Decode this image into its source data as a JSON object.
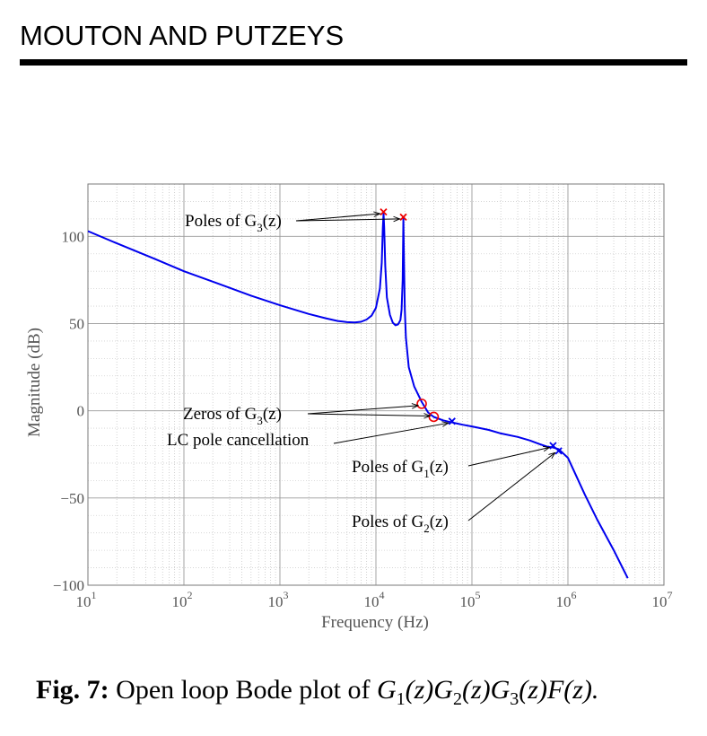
{
  "header": {
    "title": "MOUTON AND PUTZEYS"
  },
  "caption": {
    "label": "Fig. 7:",
    "text": " Open loop Bode plot of ",
    "expression": "G₁(z)G₂(z)G₃(z)F(z).",
    "expression_parts": [
      {
        "base": "G",
        "sub": "1",
        "tail": "(z)"
      },
      {
        "base": "G",
        "sub": "2",
        "tail": "(z)"
      },
      {
        "base": "G",
        "sub": "3",
        "tail": "(z)"
      },
      {
        "base": "F",
        "sub": "",
        "tail": "(z)."
      }
    ]
  },
  "chart_data": {
    "type": "line",
    "title": "",
    "xlabel": "Frequency (Hz)",
    "ylabel": "Magnitude (dB)",
    "xscale": "log",
    "xlim": [
      10,
      10000000
    ],
    "ylim": [
      -100,
      130
    ],
    "grid": true,
    "x_ticks": [
      {
        "base": "10",
        "exp": "1",
        "value": 10
      },
      {
        "base": "10",
        "exp": "2",
        "value": 100
      },
      {
        "base": "10",
        "exp": "3",
        "value": 1000
      },
      {
        "base": "10",
        "exp": "4",
        "value": 10000
      },
      {
        "base": "10",
        "exp": "5",
        "value": 100000
      },
      {
        "base": "10",
        "exp": "6",
        "value": 1000000
      },
      {
        "base": "10",
        "exp": "7",
        "value": 10000000
      }
    ],
    "y_ticks": [
      {
        "label": "100",
        "value": 100
      },
      {
        "label": "50",
        "value": 50
      },
      {
        "label": "0",
        "value": 0
      },
      {
        "label": "−50",
        "value": -50
      },
      {
        "label": "−100",
        "value": -100
      }
    ],
    "series_color": "#0000ee",
    "marker_color": "#ee0000",
    "series": [
      {
        "x": [
          10,
          20,
          50,
          100,
          200,
          500,
          1000,
          2000,
          3000,
          4000,
          5000,
          6000,
          7000,
          8000,
          9000,
          10000,
          11000,
          11500,
          11800,
          12000,
          12200,
          12500,
          13000,
          14000,
          15000,
          16000,
          17000,
          18000,
          18500,
          19000,
          19300,
          19600,
          20000,
          20500,
          22000,
          25000,
          30000,
          35000,
          40000,
          50000,
          60000,
          80000,
          100000,
          150000,
          200000,
          300000,
          400000,
          500000,
          600000,
          700000,
          800000,
          1000000,
          1500000,
          2000000,
          3000000,
          4200000
        ],
        "y": [
          103,
          96,
          87,
          80,
          74,
          66,
          60.5,
          55.5,
          53,
          51.5,
          50.8,
          50.6,
          51,
          52.3,
          54.5,
          59,
          70,
          85,
          105,
          113,
          105,
          83,
          65,
          55,
          50.5,
          49,
          49.5,
          52,
          58,
          75,
          110,
          85,
          58,
          42,
          25,
          14,
          5,
          -1,
          -3.5,
          -5.5,
          -6.5,
          -8,
          -9,
          -11,
          -13,
          -15,
          -17,
          -19,
          -20.5,
          -21,
          -22,
          -27,
          -48,
          -62,
          -80,
          -96
        ]
      }
    ],
    "markers": [
      {
        "kind": "x",
        "x": 12000,
        "y": 114,
        "color": "#ee0000"
      },
      {
        "kind": "x",
        "x": 19300,
        "y": 111,
        "color": "#ee0000"
      },
      {
        "kind": "o",
        "x": 30000,
        "y": 4,
        "color": "#ee0000"
      },
      {
        "kind": "o",
        "x": 40000,
        "y": -3.5,
        "color": "#ee0000"
      },
      {
        "kind": "x",
        "x": 62000,
        "y": -6,
        "color": "#0000ee"
      },
      {
        "kind": "x",
        "x": 700000,
        "y": -20,
        "color": "#0000ee"
      },
      {
        "kind": "x",
        "x": 800000,
        "y": -23,
        "color": "#0000ee"
      }
    ],
    "annotations": [
      {
        "main": "Poles of G",
        "sub": "3",
        "tail": "(z)",
        "targets": [
          [
            12000,
            114
          ],
          [
            19300,
            111
          ]
        ]
      },
      {
        "main": "Zeros of G",
        "sub": "3",
        "tail": "(z)",
        "targets": [
          [
            30000,
            4
          ],
          [
            40000,
            -3.5
          ]
        ]
      },
      {
        "main": "LC pole cancellation",
        "sub": "",
        "tail": "",
        "targets": [
          [
            62000,
            -6
          ]
        ]
      },
      {
        "main": "Poles of G",
        "sub": "1",
        "tail": "(z)",
        "targets": [
          [
            700000,
            -20
          ]
        ]
      },
      {
        "main": "Poles of G",
        "sub": "2",
        "tail": "(z)",
        "targets": [
          [
            800000,
            -23
          ]
        ]
      }
    ]
  }
}
